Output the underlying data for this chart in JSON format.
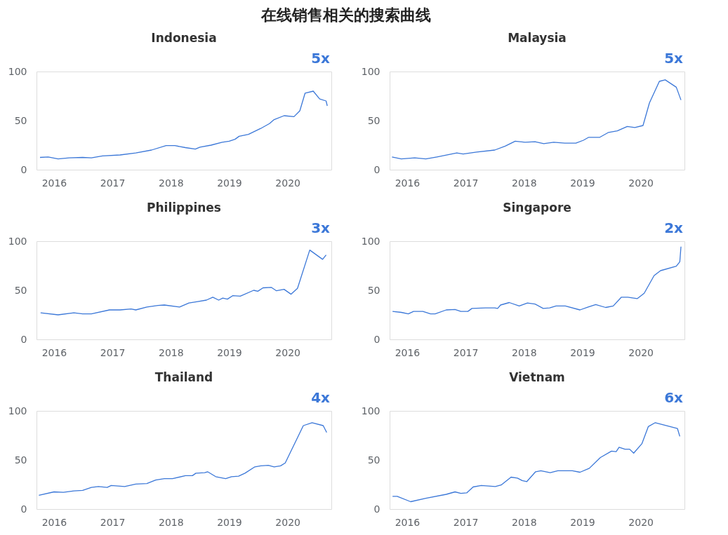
{
  "chart_data": [
    {
      "type": "other",
      "title": "在线销售相关的搜索曲线"
    },
    {
      "type": "line",
      "title": "Indonesia",
      "annotations": [
        "5x"
      ],
      "xlim": [
        2015.7,
        2020.75
      ],
      "xticks": [
        2016,
        2017,
        2018,
        2019,
        2020
      ],
      "ylim": [
        0,
        100
      ],
      "yticks": [
        0,
        50,
        100
      ],
      "series": [
        {
          "color": "#3c78d8",
          "x": [
            2015.76,
            2015.9,
            2016.07,
            2016.26,
            2016.49,
            2016.64,
            2016.83,
            2017.13,
            2017.4,
            2017.67,
            2017.92,
            2018.07,
            2018.25,
            2018.42,
            2018.5,
            2018.69,
            2018.88,
            2019.0,
            2019.1,
            2019.17,
            2019.33,
            2019.54,
            2019.69,
            2019.77,
            2019.94,
            2020.11,
            2020.21,
            2020.3,
            2020.44,
            2020.55,
            2020.66,
            2020.68
          ],
          "values": [
            12.5,
            13,
            11,
            12,
            12.5,
            12,
            14,
            15,
            17,
            20,
            24.5,
            24.5,
            22.5,
            21,
            23,
            25,
            28,
            29,
            31,
            34,
            36,
            42,
            47,
            51,
            55,
            54,
            60,
            78,
            80,
            72,
            70,
            65
          ]
        }
      ]
    },
    {
      "type": "line",
      "title": "Malaysia",
      "annotations": [
        "5x"
      ],
      "xlim": [
        2015.7,
        2020.75
      ],
      "xticks": [
        2016,
        2017,
        2018,
        2019,
        2020
      ],
      "ylim": [
        0,
        100
      ],
      "yticks": [
        0,
        50,
        100
      ],
      "series": [
        {
          "color": "#3c78d8",
          "x": [
            2015.74,
            2015.9,
            2016.13,
            2016.32,
            2016.51,
            2016.85,
            2016.96,
            2017.19,
            2017.5,
            2017.68,
            2017.85,
            2018.02,
            2018.19,
            2018.34,
            2018.51,
            2018.7,
            2018.89,
            2019.02,
            2019.11,
            2019.3,
            2019.45,
            2019.6,
            2019.77,
            2019.9,
            2020.04,
            2020.15,
            2020.32,
            2020.42,
            2020.61,
            2020.69
          ],
          "values": [
            13,
            11,
            12,
            11,
            13,
            17,
            16,
            18,
            20,
            24,
            29,
            28,
            28.5,
            26.5,
            28,
            27,
            27,
            30,
            33,
            33,
            38,
            39.5,
            44,
            43,
            45,
            68,
            90,
            91.5,
            84,
            71
          ]
        }
      ]
    },
    {
      "type": "line",
      "title": "Philippines",
      "annotations": [
        "3x"
      ],
      "xlim": [
        2015.7,
        2020.75
      ],
      "xticks": [
        2016,
        2017,
        2018,
        2019,
        2020
      ],
      "ylim": [
        0,
        100
      ],
      "yticks": [
        0,
        50,
        100
      ],
      "series": [
        {
          "color": "#3c78d8",
          "x": [
            2015.77,
            2016.07,
            2016.34,
            2016.49,
            2016.64,
            2016.95,
            2017.13,
            2017.32,
            2017.4,
            2017.59,
            2017.78,
            2017.89,
            2018.15,
            2018.31,
            2018.46,
            2018.61,
            2018.72,
            2018.82,
            2018.89,
            2018.97,
            2019.06,
            2019.19,
            2019.42,
            2019.49,
            2019.58,
            2019.72,
            2019.81,
            2019.94,
            2020.06,
            2020.17,
            2020.38,
            2020.6,
            2020.66
          ],
          "values": [
            27,
            25,
            27,
            26,
            26,
            30,
            30,
            31,
            30,
            33,
            34.5,
            35,
            33,
            37,
            38.5,
            40,
            43,
            40,
            42,
            41,
            44.5,
            44,
            50,
            49,
            52.5,
            53,
            49.5,
            51,
            46,
            52,
            91,
            81.5,
            86
          ]
        }
      ]
    },
    {
      "type": "line",
      "title": "Singapore",
      "annotations": [
        "2x"
      ],
      "xlim": [
        2015.7,
        2020.75
      ],
      "xticks": [
        2016,
        2017,
        2018,
        2019,
        2020
      ],
      "ylim": [
        0,
        100
      ],
      "yticks": [
        0,
        50,
        100
      ],
      "series": [
        {
          "color": "#3c78d8",
          "x": [
            2015.75,
            2015.9,
            2016.02,
            2016.11,
            2016.27,
            2016.4,
            2016.48,
            2016.67,
            2016.82,
            2016.92,
            2017.04,
            2017.11,
            2017.34,
            2017.5,
            2017.55,
            2017.6,
            2017.75,
            2017.92,
            2018.06,
            2018.19,
            2018.33,
            2018.44,
            2018.55,
            2018.71,
            2018.96,
            2019.1,
            2019.23,
            2019.4,
            2019.53,
            2019.67,
            2019.78,
            2019.94,
            2020.06,
            2020.23,
            2020.34,
            2020.61,
            2020.67,
            2020.69
          ],
          "values": [
            28.5,
            27.5,
            26,
            28.5,
            28.5,
            26,
            26,
            30,
            30.5,
            28.5,
            28.5,
            31.5,
            32,
            32,
            31.5,
            35,
            37.5,
            34,
            37,
            36,
            31.5,
            32,
            34,
            34,
            30,
            33,
            35.5,
            32.5,
            34,
            43,
            43,
            41.5,
            47,
            65,
            70,
            74.5,
            79,
            94.5
          ]
        }
      ]
    },
    {
      "type": "line",
      "title": "Thailand",
      "annotations": [
        "4x"
      ],
      "xlim": [
        2015.7,
        2020.75
      ],
      "xticks": [
        2016,
        2017,
        2018,
        2019,
        2020
      ],
      "ylim": [
        0,
        100
      ],
      "yticks": [
        0,
        50,
        100
      ],
      "series": [
        {
          "color": "#3c78d8",
          "x": [
            2015.74,
            2016.0,
            2016.16,
            2016.34,
            2016.49,
            2016.64,
            2016.76,
            2016.91,
            2016.98,
            2017.21,
            2017.4,
            2017.59,
            2017.74,
            2017.89,
            2018.03,
            2018.25,
            2018.37,
            2018.43,
            2018.58,
            2018.63,
            2018.77,
            2018.94,
            2019.04,
            2019.16,
            2019.27,
            2019.44,
            2019.54,
            2019.67,
            2019.77,
            2019.88,
            2019.96,
            2020.27,
            2020.42,
            2020.61,
            2020.67
          ],
          "values": [
            14,
            17.5,
            17,
            18.5,
            19,
            22,
            23,
            22,
            24,
            23,
            25.5,
            26,
            29.5,
            31,
            31,
            34,
            34,
            36.5,
            37,
            38,
            33,
            31,
            33,
            33.5,
            36.5,
            43,
            44,
            44.5,
            43,
            44,
            47,
            85,
            88,
            85,
            78
          ]
        }
      ]
    },
    {
      "type": "line",
      "title": "Vietnam",
      "annotations": [
        "6x"
      ],
      "xlim": [
        2015.7,
        2020.75
      ],
      "xticks": [
        2016,
        2017,
        2018,
        2019,
        2020
      ],
      "ylim": [
        0,
        100
      ],
      "yticks": [
        0,
        50,
        100
      ],
      "series": [
        {
          "color": "#3c78d8",
          "x": [
            2015.75,
            2015.83,
            2016.06,
            2016.32,
            2016.67,
            2016.82,
            2016.92,
            2017.02,
            2017.13,
            2017.27,
            2017.51,
            2017.61,
            2017.78,
            2017.89,
            2017.97,
            2018.05,
            2018.2,
            2018.29,
            2018.45,
            2018.58,
            2018.83,
            2018.96,
            2019.12,
            2019.31,
            2019.5,
            2019.58,
            2019.63,
            2019.73,
            2019.81,
            2019.88,
            2020.02,
            2020.13,
            2020.25,
            2020.63,
            2020.67
          ],
          "values": [
            13,
            13,
            7.5,
            11,
            15,
            17.5,
            16,
            16.5,
            22.5,
            24,
            23,
            24.5,
            32.5,
            31.5,
            29,
            28,
            38,
            39,
            37,
            39,
            39,
            37.5,
            41.5,
            52.5,
            59,
            58.5,
            63,
            61,
            61,
            57,
            66.5,
            84,
            88,
            82,
            74
          ]
        }
      ]
    }
  ]
}
